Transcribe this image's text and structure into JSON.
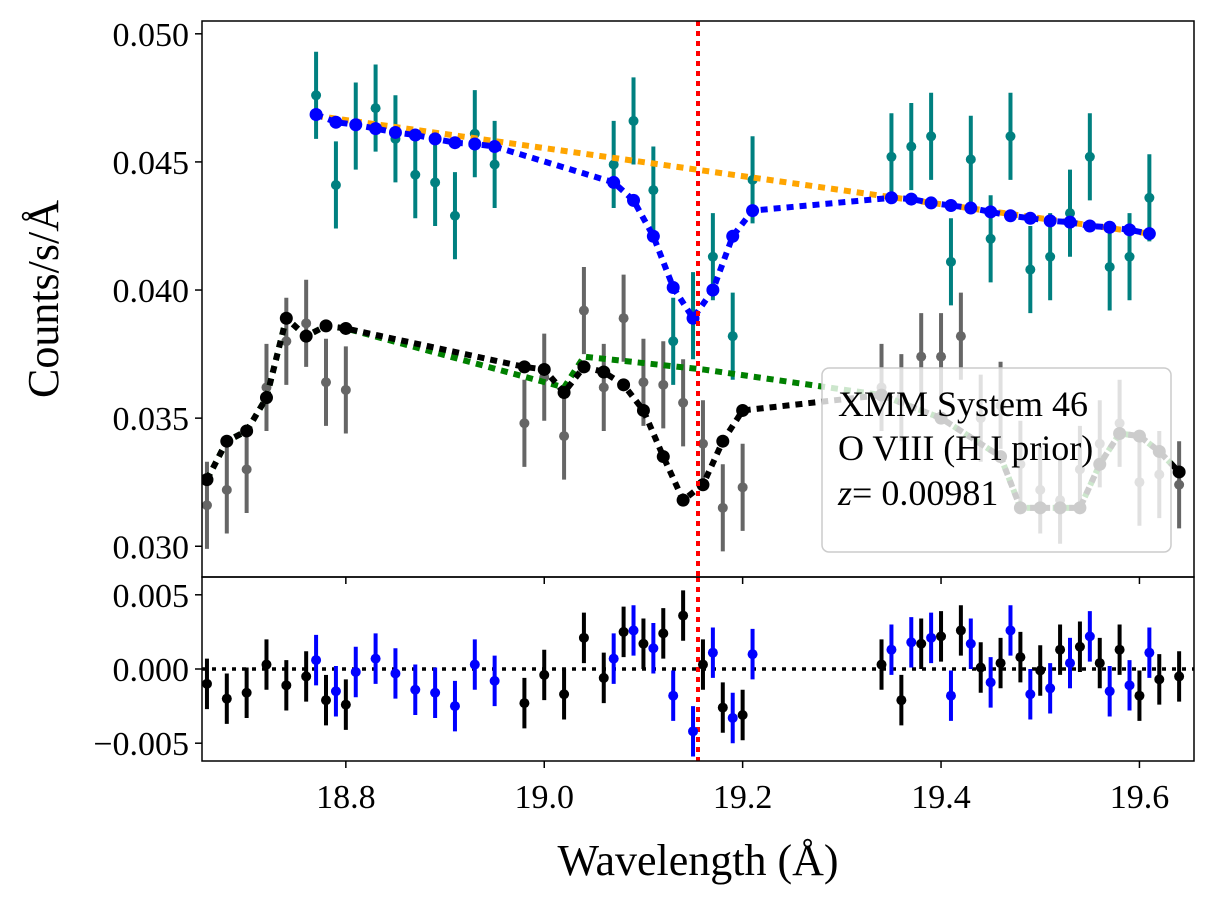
{
  "chart_data": {
    "type": "scatter",
    "title": "",
    "xlabel": "Wavelength (Å)",
    "xlim": [
      18.655,
      19.655
    ],
    "xticks": [
      18.8,
      19.0,
      19.2,
      19.4,
      19.6
    ],
    "xtick_labels": [
      "18.8",
      "19.0",
      "19.2",
      "19.4",
      "19.6"
    ],
    "line_marker": {
      "x": 19.155,
      "color": "#ff0000",
      "style": "dotted"
    },
    "legend": {
      "position": "lower-right",
      "line1": "XMM System 46",
      "line2": "O VIII (H I prior)",
      "line3_prefix": "z",
      "line3_value": "= 0.00981"
    },
    "top_panel": {
      "ylabel": "Counts/s/Å",
      "ylim": [
        0.0288,
        0.0505
      ],
      "yticks": [
        0.03,
        0.035,
        0.04,
        0.045,
        0.05
      ],
      "ytick_labels": [
        "0.030",
        "0.035",
        "0.040",
        "0.045",
        "0.050"
      ],
      "series": [
        {
          "name": "teal data",
          "color": "#008080",
          "x": [
            18.77,
            18.79,
            18.81,
            18.83,
            18.85,
            18.87,
            18.89,
            18.91,
            18.93,
            18.95,
            19.07,
            19.09,
            19.11,
            19.13,
            19.15,
            19.17,
            19.19,
            19.21,
            19.35,
            19.37,
            19.39,
            19.41,
            19.43,
            19.45,
            19.47,
            19.49,
            19.51,
            19.53,
            19.55,
            19.57,
            19.59,
            19.61
          ],
          "y": [
            0.0476,
            0.0441,
            0.0464,
            0.0471,
            0.0459,
            0.0445,
            0.0442,
            0.0429,
            0.0461,
            0.0449,
            0.0449,
            0.0466,
            0.0439,
            0.038,
            0.039,
            0.0413,
            0.0382,
            0.0443,
            0.0452,
            0.0456,
            0.046,
            0.0411,
            0.0451,
            0.042,
            0.046,
            0.0408,
            0.0413,
            0.043,
            0.0452,
            0.0409,
            0.0413,
            0.0436
          ],
          "err": 0.0017
        },
        {
          "name": "gray data",
          "color": "#666666",
          "x": [
            18.66,
            18.68,
            18.7,
            18.72,
            18.74,
            18.76,
            18.78,
            18.8,
            18.98,
            19.0,
            19.02,
            19.04,
            19.06,
            19.08,
            19.1,
            19.12,
            19.14,
            19.16,
            19.18,
            19.2,
            19.34,
            19.36,
            19.38,
            19.4,
            19.42,
            19.44,
            19.46,
            19.48,
            19.5,
            19.52,
            19.54,
            19.56,
            19.58,
            19.6,
            19.62,
            19.64
          ],
          "y": [
            0.0316,
            0.0322,
            0.033,
            0.0362,
            0.038,
            0.0387,
            0.0364,
            0.0361,
            0.0348,
            0.0366,
            0.0343,
            0.0392,
            0.0362,
            0.0389,
            0.0364,
            0.0363,
            0.0356,
            0.034,
            0.0315,
            0.0323,
            0.0362,
            0.0358,
            0.0374,
            0.0374,
            0.0382,
            0.035,
            0.0355,
            0.0332,
            0.0322,
            0.0318,
            0.033,
            0.034,
            0.0348,
            0.0325,
            0.0328,
            0.0324
          ],
          "err": 0.0017
        }
      ],
      "models": [
        {
          "name": "orange continuum",
          "color": "#ffa500",
          "x": [
            18.77,
            19.61
          ],
          "y": [
            0.0468,
            0.0422
          ]
        },
        {
          "name": "blue model",
          "color": "#0000ff",
          "x": [
            18.77,
            18.79,
            18.81,
            18.83,
            18.85,
            18.87,
            18.89,
            18.91,
            18.93,
            18.95,
            19.07,
            19.09,
            19.11,
            19.13,
            19.15,
            19.17,
            19.19,
            19.21,
            19.35,
            19.37,
            19.39,
            19.41,
            19.43,
            19.45,
            19.47,
            19.49,
            19.51,
            19.53,
            19.55,
            19.57,
            19.59,
            19.61
          ],
          "y": [
            0.04685,
            0.04655,
            0.04645,
            0.0463,
            0.04615,
            0.04605,
            0.0459,
            0.04575,
            0.0457,
            0.0456,
            0.0442,
            0.0435,
            0.0421,
            0.0401,
            0.0389,
            0.04,
            0.0421,
            0.0431,
            0.0436,
            0.04355,
            0.0434,
            0.0433,
            0.0432,
            0.04305,
            0.0429,
            0.0428,
            0.0427,
            0.04265,
            0.0425,
            0.04245,
            0.04235,
            0.0422
          ]
        },
        {
          "name": "green continuum",
          "color": "#008000",
          "x": [
            18.66,
            18.68,
            18.7,
            18.72,
            18.74,
            18.76,
            18.78,
            18.8,
            19.02,
            19.04,
            19.16,
            19.34,
            19.4,
            19.46,
            19.48,
            19.5,
            19.52,
            19.54,
            19.56,
            19.58,
            19.6,
            19.62,
            19.64
          ],
          "y": [
            0.0326,
            0.0341,
            0.0345,
            0.0358,
            0.0389,
            0.0382,
            0.0386,
            0.0385,
            0.0362,
            0.0374,
            0.0369,
            0.0359,
            0.035,
            0.0335,
            0.0315,
            0.0315,
            0.0315,
            0.0315,
            0.0332,
            0.0344,
            0.0343,
            0.0337,
            0.0329
          ]
        },
        {
          "name": "black model",
          "color": "#000000",
          "x": [
            18.66,
            18.68,
            18.7,
            18.72,
            18.74,
            18.76,
            18.78,
            18.8,
            18.98,
            19.0,
            19.02,
            19.04,
            19.06,
            19.08,
            19.1,
            19.12,
            19.14,
            19.16,
            19.18,
            19.2,
            19.34,
            19.4,
            19.46,
            19.48,
            19.5,
            19.52,
            19.54,
            19.56,
            19.58,
            19.6,
            19.62,
            19.64
          ],
          "y": [
            0.0326,
            0.0341,
            0.0345,
            0.0358,
            0.0389,
            0.0382,
            0.0386,
            0.0385,
            0.037,
            0.0369,
            0.036,
            0.037,
            0.0368,
            0.0363,
            0.0353,
            0.0335,
            0.0318,
            0.0324,
            0.0341,
            0.0353,
            0.0359,
            0.035,
            0.0335,
            0.0315,
            0.0315,
            0.0315,
            0.0315,
            0.0332,
            0.0344,
            0.0343,
            0.0337,
            0.0329
          ]
        }
      ]
    },
    "bottom_panel": {
      "ylabel": "",
      "ylim": [
        -0.0062,
        0.0062
      ],
      "yticks": [
        -0.005,
        0.0,
        0.005
      ],
      "ytick_labels": [
        "−0.005",
        "0.000",
        "0.005"
      ],
      "zero_line": 0.0,
      "series": [
        {
          "name": "black residuals",
          "color": "#000000",
          "x": [
            18.66,
            18.68,
            18.7,
            18.72,
            18.74,
            18.76,
            18.78,
            18.8,
            18.98,
            19.0,
            19.02,
            19.04,
            19.06,
            19.08,
            19.1,
            19.12,
            19.14,
            19.16,
            19.18,
            19.2,
            19.34,
            19.36,
            19.38,
            19.4,
            19.42,
            19.44,
            19.46,
            19.48,
            19.5,
            19.52,
            19.54,
            19.56,
            19.58,
            19.6,
            19.62,
            19.64
          ],
          "y": [
            -0.001,
            -0.002,
            -0.0016,
            0.0003,
            -0.0011,
            -0.0005,
            -0.0021,
            -0.0024,
            -0.0023,
            -0.0004,
            -0.0017,
            0.0021,
            -0.0006,
            0.0025,
            0.0017,
            0.0024,
            0.0036,
            0.0003,
            -0.0026,
            -0.0031,
            0.0003,
            -0.0021,
            0.0017,
            0.0022,
            0.0026,
            0.0001,
            0.0004,
            0.0008,
            -0.0001,
            0.0013,
            0.0015,
            0.0004,
            0.0013,
            -0.0018,
            -0.0007,
            -0.0005
          ],
          "err": 0.0017
        },
        {
          "name": "blue residuals",
          "color": "#0000ff",
          "x": [
            18.77,
            18.79,
            18.81,
            18.83,
            18.85,
            18.87,
            18.89,
            18.91,
            18.93,
            18.95,
            19.07,
            19.09,
            19.11,
            19.13,
            19.15,
            19.17,
            19.19,
            19.21,
            19.35,
            19.37,
            19.39,
            19.41,
            19.43,
            19.45,
            19.47,
            19.49,
            19.51,
            19.53,
            19.55,
            19.57,
            19.59,
            19.61
          ],
          "y": [
            0.0006,
            -0.0015,
            -0.0002,
            0.0007,
            -0.0003,
            -0.0014,
            -0.0016,
            -0.0025,
            0.0003,
            -0.0008,
            0.0007,
            0.0026,
            0.0014,
            -0.0018,
            -0.0042,
            0.0011,
            -0.0033,
            0.001,
            0.0013,
            0.0018,
            0.0021,
            -0.0018,
            0.0017,
            -0.0009,
            0.0026,
            -0.0017,
            -0.0013,
            0.0004,
            0.0022,
            -0.0015,
            -0.0011,
            0.0011
          ],
          "err": 0.0017
        }
      ]
    }
  }
}
